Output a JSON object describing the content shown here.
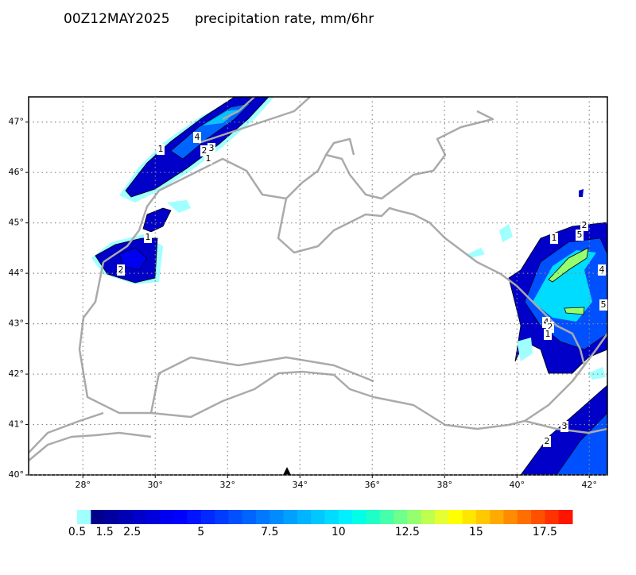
{
  "header": {
    "time": "00Z12MAY2025",
    "title": "precipitation rate, mm/6hr"
  },
  "map": {
    "lonlim": [
      26.5,
      42.5
    ],
    "latlim": [
      40,
      47.5
    ],
    "grid": true,
    "lon_ticks": [
      {
        "value": 28,
        "label": "28°"
      },
      {
        "value": 30,
        "label": "30°"
      },
      {
        "value": 32,
        "label": "32°"
      },
      {
        "value": 34,
        "label": "34°"
      },
      {
        "value": 36,
        "label": "36°"
      },
      {
        "value": 38,
        "label": "38°"
      },
      {
        "value": 40,
        "label": "40°"
      },
      {
        "value": 42,
        "label": "42°"
      }
    ],
    "lat_ticks": [
      {
        "value": 40,
        "label": "40°"
      },
      {
        "value": 41,
        "label": "41°"
      },
      {
        "value": 42,
        "label": "42°"
      },
      {
        "value": 43,
        "label": "43°"
      },
      {
        "value": 44,
        "label": "44°"
      },
      {
        "value": 45,
        "label": "45°"
      },
      {
        "value": 46,
        "label": "46°"
      },
      {
        "value": 47,
        "label": "47°"
      }
    ],
    "contour_labels": [
      "1",
      "4",
      "2",
      "3",
      "1",
      "1",
      "2",
      "1",
      "2",
      "5",
      "4",
      "5",
      "4",
      "2",
      "1",
      "3",
      "2"
    ]
  },
  "colorbar": {
    "lim": [
      0.5,
      18.5
    ],
    "ticks": [
      0.5,
      1.5,
      2.5,
      5,
      7.5,
      10,
      12.5,
      15,
      17.5
    ],
    "colors": [
      "#a0ffff",
      "#00008c",
      "#0000a0",
      "#0000b4",
      "#0000c8",
      "#0000dc",
      "#0000f0",
      "#0000ff",
      "#0014ff",
      "#0028ff",
      "#003cff",
      "#0050ff",
      "#0064ff",
      "#0078ff",
      "#008cff",
      "#00a0ff",
      "#00b4ff",
      "#00c8ff",
      "#00dcff",
      "#00f0ff",
      "#00ffe6",
      "#1effc8",
      "#46ffaa",
      "#6eff8c",
      "#96ff6e",
      "#beff50",
      "#e6ff32",
      "#ffff00",
      "#ffe600",
      "#ffc800",
      "#ffaa00",
      "#ff8c00",
      "#ff6e00",
      "#ff5000",
      "#ff3200",
      "#ff1400"
    ]
  }
}
